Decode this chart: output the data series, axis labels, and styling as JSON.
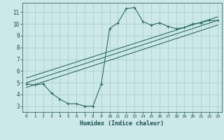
{
  "curve_x": [
    0,
    1,
    2,
    3,
    4,
    5,
    6,
    7,
    8,
    9,
    10,
    11,
    12,
    13,
    14,
    15,
    16,
    17,
    18,
    19,
    20,
    21,
    22,
    23
  ],
  "curve_y": [
    4.9,
    4.8,
    4.9,
    4.1,
    3.6,
    3.2,
    3.2,
    3.0,
    3.0,
    4.9,
    9.6,
    10.1,
    11.3,
    11.4,
    10.2,
    9.9,
    10.1,
    9.8,
    9.6,
    9.7,
    10.0,
    10.1,
    10.3,
    10.3
  ],
  "line1_x": [
    0,
    23
  ],
  "line1_y": [
    5.0,
    10.3
  ],
  "line2_x": [
    0,
    23
  ],
  "line2_y": [
    5.4,
    10.6
  ],
  "line3_x": [
    0,
    23
  ],
  "line3_y": [
    4.6,
    9.9
  ],
  "xlabel": "Humidex (Indice chaleur)",
  "xlim": [
    -0.5,
    23.5
  ],
  "ylim": [
    2.5,
    11.8
  ],
  "yticks": [
    3,
    4,
    5,
    6,
    7,
    8,
    9,
    10,
    11
  ],
  "xticks": [
    0,
    1,
    2,
    3,
    4,
    5,
    6,
    7,
    8,
    9,
    10,
    11,
    12,
    13,
    14,
    15,
    16,
    17,
    18,
    19,
    20,
    21,
    22,
    23
  ],
  "curve_color": "#2a6e63",
  "line_color": "#2a6e63",
  "bg_color": "#cce8e8",
  "grid_color": "#aacccc",
  "tick_color": "#1a5050",
  "label_color": "#1a5050"
}
